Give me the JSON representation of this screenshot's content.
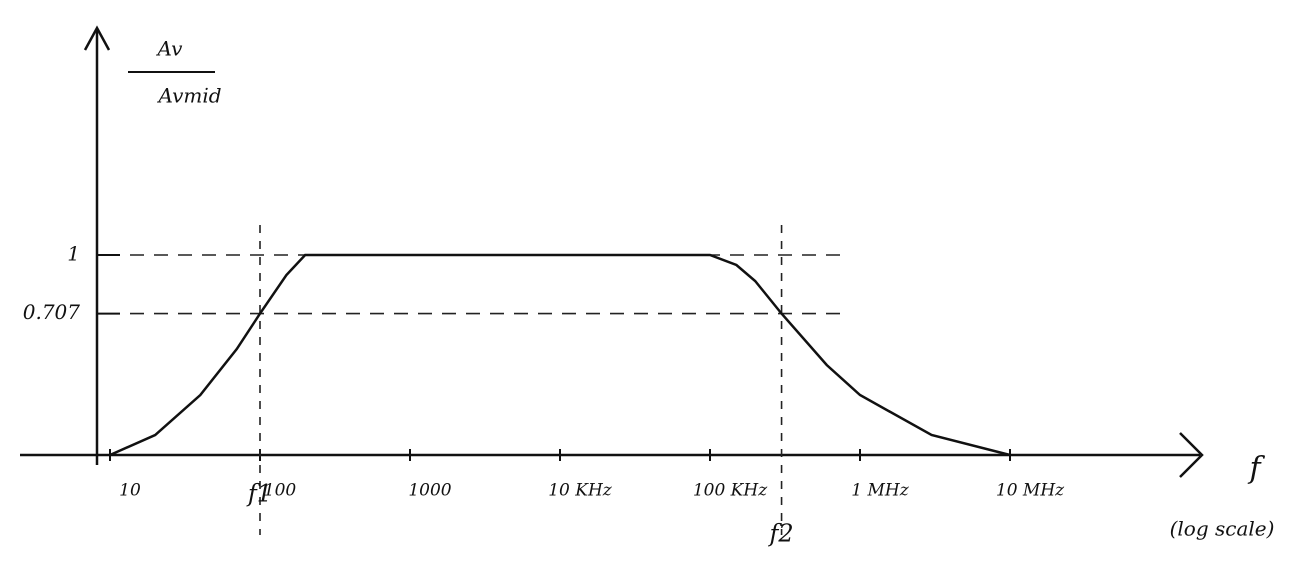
{
  "chart_data": {
    "type": "line",
    "ylabel": {
      "numerator": "Av",
      "denominator": "Avmid"
    },
    "xlabel": "f",
    "xlabel_note": "(log scale)",
    "xscale": "log",
    "xlim": [
      10,
      100000000
    ],
    "ylim": [
      0,
      2
    ],
    "xticks": [
      10,
      100,
      1000,
      {
        "value": 10000,
        "label": "10 KHz"
      },
      {
        "value": 100000,
        "label": "100 KHz"
      },
      {
        "value": 1000000,
        "label": "1 MHz"
      },
      {
        "value": 10000000,
        "label": "10 MHz"
      }
    ],
    "yticks": [
      1,
      0.707
    ],
    "grid": true,
    "annotations": [
      {
        "text": "f1",
        "x": 100
      },
      {
        "text": "f2",
        "x": 300000
      }
    ],
    "series": [
      {
        "color": "#111111",
        "x": [
          10,
          20,
          40,
          70,
          100,
          150,
          200,
          500,
          1000,
          10000,
          100000,
          150000,
          200000,
          300000,
          600000,
          1000000,
          3000000,
          10000000
        ],
        "values": [
          0,
          0.1,
          0.3,
          0.53,
          0.707,
          0.9,
          1,
          1,
          1,
          1,
          1,
          0.95,
          0.87,
          0.707,
          0.45,
          0.3,
          0.1,
          0
        ]
      }
    ]
  }
}
